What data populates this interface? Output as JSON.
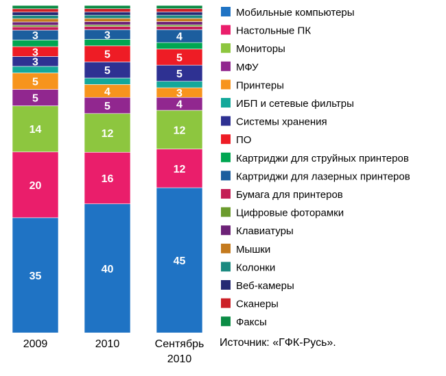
{
  "chart_data": {
    "type": "bar",
    "stacked": true,
    "normalized_percent": true,
    "categories": [
      [
        "2009"
      ],
      [
        "2010"
      ],
      [
        "Сентябрь",
        "2010"
      ]
    ],
    "series": [
      {
        "name": "Мобильные компьютеры",
        "color": "#1f73c4",
        "values": [
          35,
          40,
          45
        ],
        "labels": [
          "35",
          "40",
          "45"
        ]
      },
      {
        "name": "Настольные ПК",
        "color": "#ea1e6b",
        "values": [
          20,
          16,
          12
        ],
        "labels": [
          "20",
          "16",
          "12"
        ]
      },
      {
        "name": "Мониторы",
        "color": "#8dc63f",
        "values": [
          14,
          12,
          12
        ],
        "labels": [
          "14",
          "12",
          "12"
        ]
      },
      {
        "name": "МФУ",
        "color": "#91278f",
        "values": [
          5,
          5,
          4
        ],
        "labels": [
          "5",
          "5",
          "4"
        ]
      },
      {
        "name": "Принтеры",
        "color": "#f7941d",
        "values": [
          5,
          4,
          3
        ],
        "labels": [
          "5",
          "4",
          "3"
        ]
      },
      {
        "name": "ИБП и сетевые фильтры",
        "color": "#14a89a",
        "values": [
          2,
          2,
          2
        ],
        "labels": [
          "",
          "",
          ""
        ]
      },
      {
        "name": "Системы хранения",
        "color": "#2e3192",
        "values": [
          3,
          5,
          5
        ],
        "labels": [
          "3",
          "5",
          "5"
        ]
      },
      {
        "name": "ПО",
        "color": "#ee1c25",
        "values": [
          3,
          5,
          5
        ],
        "labels": [
          "3",
          "5",
          "5"
        ]
      },
      {
        "name": "Картриджи для струйных принтеров",
        "color": "#00a651",
        "values": [
          2,
          2,
          2
        ],
        "labels": [
          "",
          "",
          ""
        ]
      },
      {
        "name": "Картриджи для лазерных принтеров",
        "color": "#1c5e9e",
        "values": [
          3,
          3,
          4
        ],
        "labels": [
          "3",
          "3",
          "4"
        ]
      },
      {
        "name": "Бумага для принтеров",
        "color": "#c41e56",
        "values": [
          1,
          1,
          1
        ],
        "labels": [
          "",
          "",
          ""
        ]
      },
      {
        "name": "Цифровые фоторамки",
        "color": "#6b9b2d",
        "values": [
          0.5,
          0.5,
          0.5
        ],
        "labels": [
          "",
          "",
          ""
        ]
      },
      {
        "name": "Клавиатуры",
        "color": "#6d2277",
        "values": [
          1,
          1,
          1
        ],
        "labels": [
          "",
          "",
          ""
        ]
      },
      {
        "name": "Мышки",
        "color": "#c47a1e",
        "values": [
          1,
          1,
          1
        ],
        "labels": [
          "",
          "",
          ""
        ]
      },
      {
        "name": "Колонки",
        "color": "#1b8a80",
        "values": [
          1,
          1,
          1
        ],
        "labels": [
          "",
          "",
          ""
        ]
      },
      {
        "name": "Веб-камеры",
        "color": "#262973",
        "values": [
          1,
          1,
          1
        ],
        "labels": [
          "",
          "",
          ""
        ]
      },
      {
        "name": "Сканеры",
        "color": "#cc2027",
        "values": [
          1,
          1,
          1
        ],
        "labels": [
          "",
          "",
          ""
        ]
      },
      {
        "name": "Факсы",
        "color": "#0b8c45",
        "values": [
          1,
          1,
          1
        ],
        "labels": [
          "",
          "",
          ""
        ]
      }
    ],
    "legend_position": "right",
    "grid": false,
    "source": "Источник: «ГФК-Русь»."
  }
}
